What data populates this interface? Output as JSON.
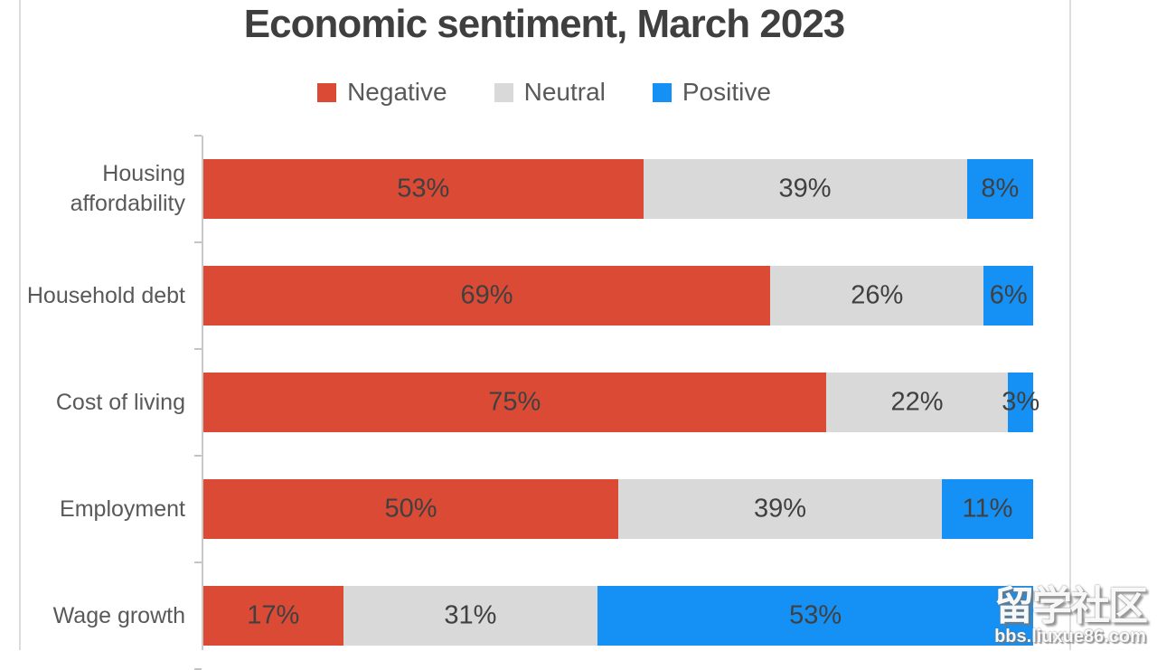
{
  "chart_data": {
    "type": "bar",
    "orientation": "horizontal",
    "stacked": true,
    "title": "Economic sentiment, March 2023",
    "categories": [
      "Housing affordability",
      "Household debt",
      "Cost of living",
      "Employment",
      "Wage growth"
    ],
    "series": [
      {
        "name": "Negative",
        "color": "#DB4A35",
        "values": [
          53,
          69,
          75,
          50,
          17
        ]
      },
      {
        "name": "Neutral",
        "color": "#D9D9D9",
        "values": [
          39,
          26,
          22,
          39,
          31
        ]
      },
      {
        "name": "Positive",
        "color": "#1591F5",
        "values": [
          8,
          6,
          3,
          11,
          53
        ]
      }
    ],
    "value_suffix": "%",
    "legend_position": "top",
    "xlim": [
      0,
      100
    ],
    "grid": "off",
    "axis_color": "#C9C9C9",
    "title_color": "#3F3F3F",
    "label_color": "#595959",
    "data_label_color": "#404040"
  },
  "watermark": {
    "text": "留学社区",
    "url": "bbs.liuxue86.com"
  }
}
